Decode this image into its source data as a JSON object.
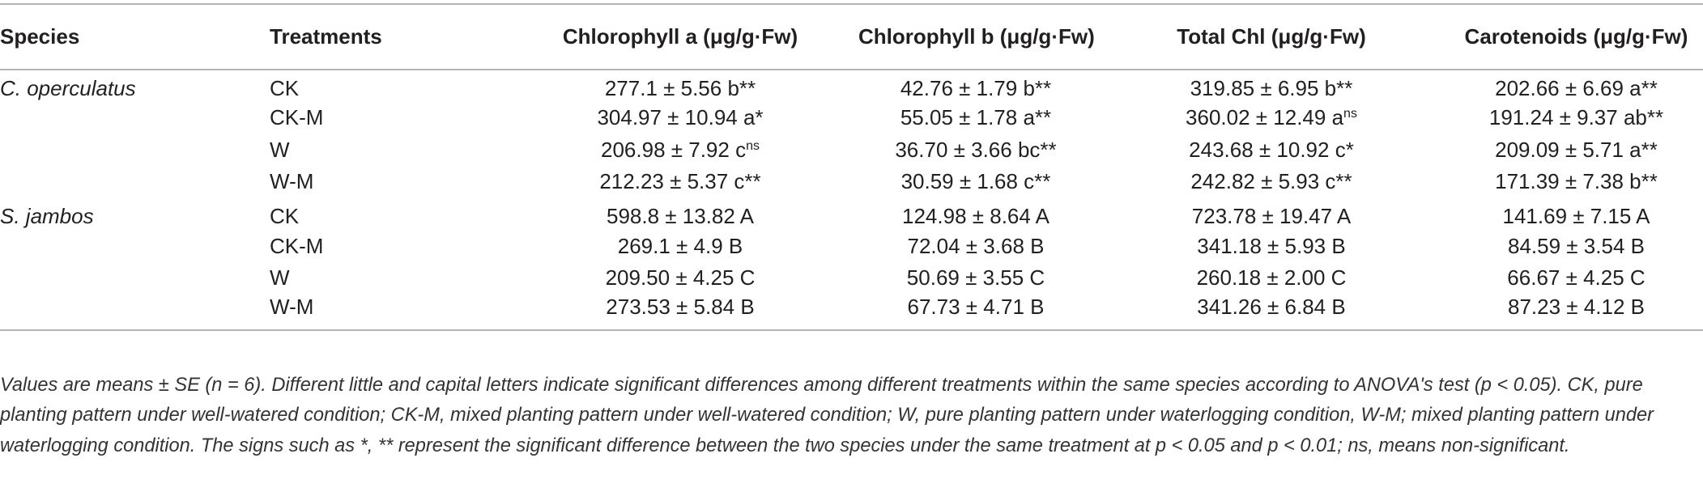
{
  "table": {
    "headers": [
      "Species",
      "Treatments",
      "Chlorophyll a (μg/g·Fw)",
      "Chlorophyll b (μg/g·Fw)",
      "Total Chl (μg/g·Fw)",
      "Carotenoids (μg/g·Fw)"
    ],
    "groups": [
      {
        "species": "C. operculatus",
        "rows": [
          {
            "treatment": "CK",
            "cells": [
              "277.1 ± 5.56 b**",
              "42.76 ± 1.79 b**",
              "319.85 ± 6.95 b**",
              "202.66 ± 6.69 a**"
            ]
          },
          {
            "treatment": "CK-M",
            "cells": [
              "304.97 ± 10.94 a*",
              "55.05 ± 1.78 a**",
              {
                "text": "360.02 ± 12.49 a",
                "sup": "ns"
              },
              "191.24 ± 9.37 ab**"
            ]
          },
          {
            "treatment": "W",
            "cells": [
              {
                "text": "206.98 ± 7.92 c",
                "sup": "ns"
              },
              "36.70 ± 3.66 bc**",
              "243.68 ± 10.92 c*",
              "209.09 ± 5.71 a**"
            ]
          },
          {
            "treatment": "W-M",
            "cells": [
              "212.23 ± 5.37 c**",
              "30.59 ± 1.68 c**",
              "242.82 ± 5.93 c**",
              "171.39 ± 7.38 b**"
            ]
          }
        ]
      },
      {
        "species": "S. jambos",
        "rows": [
          {
            "treatment": "CK",
            "cells": [
              "598.8 ± 13.82 A",
              "124.98 ± 8.64 A",
              "723.78 ± 19.47 A",
              "141.69 ± 7.15 A"
            ]
          },
          {
            "treatment": "CK-M",
            "cells": [
              "269.1 ± 4.9 B",
              "72.04 ± 3.68 B",
              "341.18 ± 5.93 B",
              "84.59 ± 3.54 B"
            ]
          },
          {
            "treatment": "W",
            "cells": [
              "209.50 ± 4.25 C",
              "50.69 ± 3.55 C",
              "260.18 ± 2.00 C",
              "66.67 ± 4.25 C"
            ]
          },
          {
            "treatment": "W-M",
            "cells": [
              "273.53 ± 5.84 B",
              "67.73 ± 4.71 B",
              "341.26 ± 6.84 B",
              "87.23 ± 4.12 B"
            ]
          }
        ]
      }
    ]
  },
  "footnote": "Values are means ± SE (n = 6). Different little and capital letters indicate significant differences among different treatments within the same species according to ANOVA's test (p < 0.05). CK, pure planting pattern under well-watered condition; CK-M, mixed planting pattern under well-watered condition; W, pure planting pattern under waterlogging condition, W-M; mixed planting pattern under waterlogging condition. The signs such as *, ** represent the significant difference between the two species under the same treatment at p < 0.05 and p < 0.01; ns, means non-significant."
}
